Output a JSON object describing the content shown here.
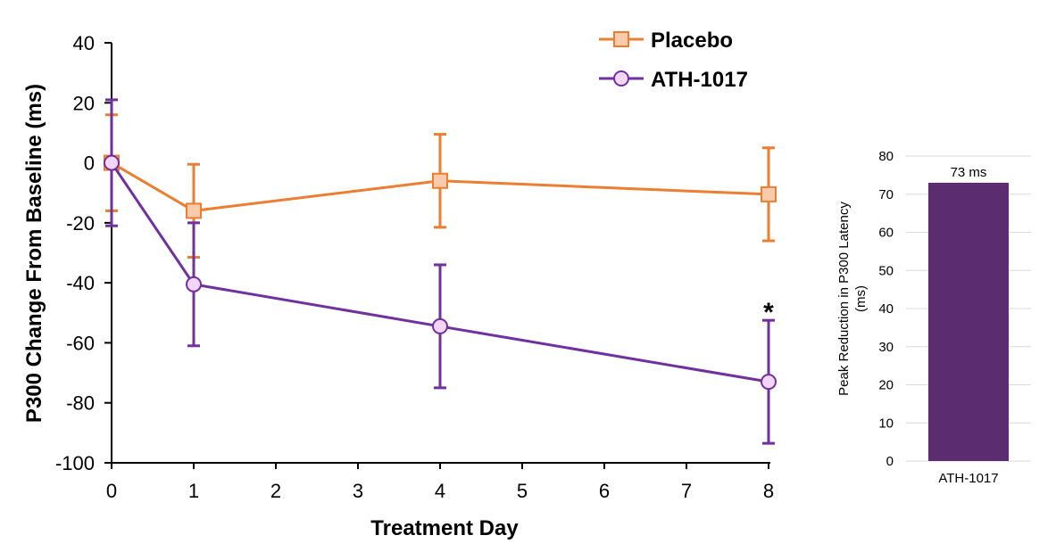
{
  "chart_data": [
    {
      "type": "line",
      "title": "",
      "xlabel": "Treatment Day",
      "ylabel": "P300 Change From Baseline (ms)",
      "xlim": [
        0,
        8
      ],
      "ylim": [
        -100,
        40
      ],
      "x_ticks": [
        "0",
        "1",
        "2",
        "3",
        "4",
        "5",
        "6",
        "7",
        "8"
      ],
      "y_ticks": [
        "40",
        "20",
        "0",
        "-20",
        "-40",
        "-60",
        "-80",
        "-100"
      ],
      "grid": false,
      "legend_position": "top-right",
      "series": [
        {
          "name": "Placebo",
          "color": "#ED7D31",
          "marker": "square",
          "marker_fill": "#F8CBAD",
          "x": [
            0,
            1,
            4,
            8
          ],
          "y": [
            0,
            -16,
            -6,
            -10.5
          ],
          "error": [
            16,
            15.5,
            15.5,
            15.5
          ]
        },
        {
          "name": "ATH-1017",
          "color": "#7030A0",
          "marker": "circle",
          "marker_fill": "#F3D6F7",
          "x": [
            0,
            1,
            4,
            8
          ],
          "y": [
            0,
            -40.5,
            -54.5,
            -73
          ],
          "error": [
            21,
            20.5,
            20.5,
            20.5
          ]
        }
      ],
      "annotations": [
        {
          "text": "*",
          "x": 8,
          "y": -73
        }
      ]
    },
    {
      "type": "bar",
      "title": "",
      "xlabel": "",
      "ylabel_line1": "Peak Reduction in P300 Latency",
      "ylabel_line2": "(ms)",
      "categories": [
        "ATH-1017"
      ],
      "values": [
        73
      ],
      "data_labels": [
        "73 ms"
      ],
      "ylim": [
        0,
        80
      ],
      "y_ticks": [
        "80",
        "70",
        "60",
        "50",
        "40",
        "30",
        "20",
        "10",
        "0"
      ],
      "grid": true,
      "color": "#5B2C6F"
    }
  ]
}
